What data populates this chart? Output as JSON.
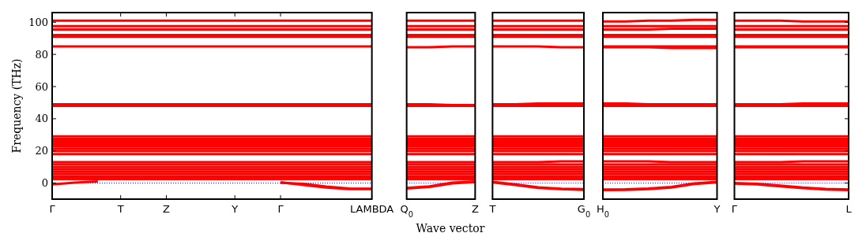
{
  "chart_data": [
    {
      "type": "line",
      "color": "#ff0000",
      "ylabel": "Frequency (THz)",
      "ylim": [
        -10,
        106
      ],
      "yticks": [
        0,
        20,
        40,
        60,
        80,
        100
      ],
      "categories": [
        "Γ",
        null,
        null,
        "T",
        null,
        "Z",
        null,
        null,
        "Y",
        null,
        "Γ",
        null,
        null,
        null,
        "LAMBDA"
      ],
      "ref_lines": [
        {
          "axis": "y",
          "value": 0,
          "color": "#0000ff",
          "line_style": "dotted"
        }
      ],
      "series": [
        {
          "values": [
            101,
            101,
            101,
            101,
            101,
            101,
            101,
            101,
            101,
            101,
            101,
            101,
            101,
            101,
            101
          ]
        },
        {
          "values": [
            97.5,
            97.5,
            97.5,
            97.5,
            97.5,
            97.5,
            97.5,
            97.5,
            97.5,
            97.5,
            97.5,
            97.5,
            97.5,
            97.5,
            97.5
          ]
        },
        {
          "values": [
            95.5,
            95.5,
            95.5,
            95.5,
            95.5,
            95.5,
            95.5,
            95.5,
            95.5,
            95.5,
            95.5,
            95.5,
            95.5,
            95.5,
            95.5
          ]
        },
        {
          "values": [
            92,
            92,
            92,
            92,
            92,
            92,
            92,
            92,
            92,
            92,
            92,
            92,
            92,
            92,
            92
          ]
        },
        {
          "values": [
            91,
            91,
            91,
            91,
            91,
            91,
            91,
            91,
            91,
            91,
            91,
            91,
            91,
            91,
            91
          ]
        },
        {
          "values": [
            85,
            85,
            85,
            85,
            85,
            85,
            85,
            85,
            85,
            85,
            85,
            85,
            85,
            85,
            85
          ]
        },
        {
          "values": [
            49,
            49,
            49,
            49,
            49,
            49,
            49,
            49,
            49,
            49,
            49,
            49,
            49,
            49,
            49
          ]
        },
        {
          "values": [
            48,
            48,
            48,
            48,
            48,
            48,
            48,
            48,
            48,
            48,
            48,
            48,
            48,
            48,
            48
          ]
        },
        {
          "values": [
            29,
            29,
            29,
            29,
            29,
            29,
            29,
            29,
            29,
            29,
            29,
            29,
            29,
            29,
            29
          ]
        },
        {
          "values": [
            27.5,
            27.5,
            27.5,
            27.5,
            27.5,
            27.5,
            27.5,
            27.5,
            27.5,
            27.5,
            27.5,
            27.5,
            27.5,
            27.5,
            27.5
          ]
        },
        {
          "values": [
            26,
            26,
            26,
            26,
            26,
            26,
            26,
            26,
            26,
            26,
            26,
            26,
            26,
            26,
            26
          ]
        },
        {
          "values": [
            24.5,
            24.5,
            24.5,
            24.5,
            24.5,
            24.5,
            24.5,
            24.5,
            24.5,
            24.5,
            24.5,
            24.5,
            24.5,
            24.5,
            24.5
          ]
        },
        {
          "values": [
            23,
            23,
            23,
            23,
            23,
            23,
            23,
            23,
            23,
            23,
            23,
            23,
            23,
            23,
            23
          ]
        },
        {
          "values": [
            21.5,
            21.5,
            21.5,
            21.5,
            21.5,
            21.5,
            21.5,
            21.5,
            21.5,
            21.5,
            21.5,
            21.5,
            21.5,
            21.5,
            21.5
          ]
        },
        {
          "values": [
            20,
            20,
            20,
            20,
            20,
            20,
            20,
            20,
            20,
            20,
            20,
            20,
            20,
            20,
            20
          ]
        },
        {
          "values": [
            18,
            18,
            18,
            18,
            18,
            18,
            18,
            18,
            18,
            18,
            18,
            18,
            18,
            18,
            18
          ]
        },
        {
          "values": [
            13,
            13,
            13,
            13,
            13,
            13,
            13,
            13,
            13,
            13,
            13,
            13,
            13,
            13,
            13
          ]
        },
        {
          "values": [
            11.5,
            11.5,
            11.5,
            11.5,
            11.5,
            11.5,
            11.5,
            11.5,
            11.5,
            11.5,
            11.5,
            11.5,
            11.5,
            11.5,
            11.5
          ]
        },
        {
          "values": [
            10,
            10,
            10,
            10,
            10,
            10,
            10,
            10,
            10,
            10,
            10,
            10,
            10,
            10,
            10
          ]
        },
        {
          "values": [
            8.5,
            8.5,
            8.5,
            8.5,
            8.5,
            8.5,
            8.5,
            8.5,
            8.5,
            8.5,
            8.5,
            8.5,
            8.5,
            8.5,
            8.5
          ]
        },
        {
          "values": [
            7,
            7,
            7,
            7,
            7,
            7,
            7,
            7,
            7,
            7,
            7,
            7,
            7,
            7,
            7
          ]
        },
        {
          "values": [
            5.5,
            5.5,
            5.5,
            5.5,
            5.5,
            5.5,
            5.5,
            5.5,
            5.5,
            5.5,
            5.5,
            5.5,
            5.5,
            5.5,
            5.5
          ]
        },
        {
          "values": [
            4,
            4,
            4,
            4,
            4,
            4,
            4,
            4,
            4,
            4,
            4,
            4,
            4,
            4,
            4
          ]
        },
        {
          "values": [
            2.5,
            2.5,
            2.5,
            2.5,
            2.5,
            2.5,
            2.5,
            2.5,
            2.5,
            2.5,
            2.5,
            2.5,
            2.5,
            2.5,
            2.5
          ]
        },
        {
          "values": [
            -0.8,
            0.3,
            1,
            null,
            null,
            null,
            null,
            null,
            null,
            null,
            null,
            null,
            null,
            null,
            null
          ]
        },
        {
          "values": [
            null,
            null,
            null,
            null,
            null,
            null,
            null,
            null,
            null,
            null,
            0.5,
            -1.2,
            -2.8,
            -3.8,
            -3.8
          ]
        },
        {
          "values": [
            null,
            null,
            null,
            null,
            null,
            null,
            null,
            null,
            null,
            null,
            0.2,
            -0.5,
            -2.2,
            -3.4,
            -3.5
          ]
        }
      ]
    },
    {
      "type": "line",
      "color": "#ff0000",
      "xlabel": "Wave vector",
      "tick_labels": "x",
      "ylim": [
        -10,
        106
      ],
      "yticks": [
        0,
        20,
        40,
        60,
        80,
        100
      ],
      "categories": [
        "Q$_{0}$",
        null,
        null,
        "Z"
      ],
      "ref_lines": [
        {
          "axis": "y",
          "value": 0,
          "color": "#0000ff",
          "line_style": "dotted"
        }
      ],
      "series": [
        {
          "values": [
            101,
            101,
            101,
            101
          ]
        },
        {
          "values": [
            97.5,
            97.5,
            97.5,
            97.5
          ]
        },
        {
          "values": [
            95.5,
            95.5,
            95.5,
            95.5
          ]
        },
        {
          "values": [
            92,
            92,
            92,
            92
          ]
        },
        {
          "values": [
            91,
            91,
            91,
            91
          ]
        },
        {
          "values": [
            84.5,
            84.5,
            85,
            85
          ]
        },
        {
          "values": [
            49,
            49,
            48.5,
            48.5
          ]
        },
        {
          "values": [
            48,
            48,
            48,
            48
          ]
        },
        {
          "values": [
            29,
            29,
            29,
            29
          ]
        },
        {
          "values": [
            27.5,
            27.5,
            27.5,
            27.5
          ]
        },
        {
          "values": [
            26,
            26,
            26,
            26
          ]
        },
        {
          "values": [
            24.5,
            24.5,
            24.5,
            24.5
          ]
        },
        {
          "values": [
            23,
            23,
            23,
            23
          ]
        },
        {
          "values": [
            21.5,
            21.5,
            21.5,
            21.5
          ]
        },
        {
          "values": [
            20,
            20,
            20,
            20
          ]
        },
        {
          "values": [
            18,
            18,
            18,
            18
          ]
        },
        {
          "values": [
            13,
            13,
            13,
            13
          ]
        },
        {
          "values": [
            11.5,
            11.5,
            11.5,
            11.5
          ]
        },
        {
          "values": [
            10,
            10,
            10,
            10
          ]
        },
        {
          "values": [
            8.5,
            8.5,
            8.5,
            8.5
          ]
        },
        {
          "values": [
            7,
            7,
            7,
            7
          ]
        },
        {
          "values": [
            5.5,
            5.5,
            5.5,
            5.5
          ]
        },
        {
          "values": [
            4,
            4,
            4,
            4
          ]
        },
        {
          "values": [
            2.5,
            2.5,
            2.5,
            2.5
          ]
        },
        {
          "values": [
            -3,
            -2,
            0.3,
            1
          ]
        },
        {
          "values": [
            -3.4,
            -2.4,
            -0.2,
            0.6
          ]
        }
      ]
    },
    {
      "type": "line",
      "color": "#ff0000",
      "tick_labels": "x",
      "ylim": [
        -10,
        106
      ],
      "yticks": [
        0,
        20,
        40,
        60,
        80,
        100
      ],
      "categories": [
        "T",
        null,
        null,
        null,
        "G$_{0}$"
      ],
      "ref_lines": [
        {
          "axis": "y",
          "value": 0,
          "color": "#0000ff",
          "line_style": "dotted"
        }
      ],
      "series": [
        {
          "values": [
            101,
            101,
            101,
            101,
            101
          ]
        },
        {
          "values": [
            97.5,
            97.5,
            97.5,
            97.5,
            97.5
          ]
        },
        {
          "values": [
            95.5,
            95.5,
            95.5,
            95.5,
            95.5
          ]
        },
        {
          "values": [
            92,
            92,
            92,
            92,
            92
          ]
        },
        {
          "values": [
            91,
            91,
            91,
            91,
            91
          ]
        },
        {
          "values": [
            85,
            85,
            85,
            84.5,
            84.5
          ]
        },
        {
          "values": [
            49,
            49,
            49.5,
            49.5,
            49.5
          ]
        },
        {
          "values": [
            48,
            48,
            48,
            48,
            48
          ]
        },
        {
          "values": [
            29,
            29,
            29,
            29,
            29
          ]
        },
        {
          "values": [
            27.5,
            27.5,
            27.5,
            27.5,
            27.5
          ]
        },
        {
          "values": [
            26,
            26,
            26,
            26,
            26
          ]
        },
        {
          "values": [
            24.5,
            24.5,
            24.5,
            24.5,
            24.5
          ]
        },
        {
          "values": [
            23,
            23,
            23,
            23,
            23
          ]
        },
        {
          "values": [
            21.5,
            21.5,
            21.5,
            21.5,
            21.5
          ]
        },
        {
          "values": [
            20,
            20,
            20,
            20,
            20
          ]
        },
        {
          "values": [
            18,
            18,
            18,
            18,
            18
          ]
        },
        {
          "values": [
            13,
            13,
            13,
            13.5,
            13.5
          ]
        },
        {
          "values": [
            11.5,
            11.5,
            11.5,
            11.5,
            11.5
          ]
        },
        {
          "values": [
            10,
            10,
            10,
            10,
            10
          ]
        },
        {
          "values": [
            8.5,
            8.5,
            8.5,
            8.5,
            8.5
          ]
        },
        {
          "values": [
            7,
            7,
            7,
            7,
            7
          ]
        },
        {
          "values": [
            5.5,
            5.5,
            5.5,
            5.5,
            5.5
          ]
        },
        {
          "values": [
            4,
            4,
            4,
            4,
            4
          ]
        },
        {
          "values": [
            2.5,
            2.5,
            2.5,
            2.5,
            2.5
          ]
        },
        {
          "values": [
            0.8,
            -0.8,
            -2.6,
            -3.5,
            -3.8
          ]
        },
        {
          "values": [
            0.4,
            -1.2,
            -3,
            -3.8,
            -4.2
          ]
        }
      ]
    },
    {
      "type": "line",
      "color": "#ff0000",
      "tick_labels": "x",
      "ylim": [
        -10,
        106
      ],
      "yticks": [
        0,
        20,
        40,
        60,
        80,
        100
      ],
      "categories": [
        "H$_{0}$",
        null,
        null,
        null,
        null,
        "Y"
      ],
      "ref_lines": [
        {
          "axis": "y",
          "value": 0,
          "color": "#0000ff",
          "line_style": "dotted"
        }
      ],
      "series": [
        {
          "values": [
            100.5,
            100.5,
            101,
            101,
            101.5,
            101.5
          ]
        },
        {
          "values": [
            97.5,
            97.5,
            97.5,
            97.5,
            97.5,
            97.5
          ]
        },
        {
          "values": [
            95.5,
            95.5,
            95.5,
            96,
            96,
            96
          ]
        },
        {
          "values": [
            92,
            92,
            92,
            92,
            92,
            92
          ]
        },
        {
          "values": [
            91,
            91,
            91,
            91,
            91,
            91
          ]
        },
        {
          "values": [
            85,
            85,
            85,
            85,
            85,
            85
          ]
        },
        {
          "values": [
            84.5,
            84.5,
            84.5,
            84,
            84,
            84
          ]
        },
        {
          "values": [
            49.5,
            49.5,
            49,
            49,
            49,
            49
          ]
        },
        {
          "values": [
            48,
            48,
            48,
            48,
            48,
            48
          ]
        },
        {
          "values": [
            29,
            29,
            29,
            29,
            29,
            29
          ]
        },
        {
          "values": [
            27.5,
            27.5,
            27.5,
            27.5,
            27.5,
            27.5
          ]
        },
        {
          "values": [
            26,
            26,
            26,
            26,
            26,
            26
          ]
        },
        {
          "values": [
            24.5,
            24.5,
            24.5,
            24.5,
            24.5,
            24.5
          ]
        },
        {
          "values": [
            23,
            23,
            23,
            23,
            23,
            23
          ]
        },
        {
          "values": [
            21.5,
            21.5,
            21.5,
            21.5,
            21.5,
            21.5
          ]
        },
        {
          "values": [
            20,
            20,
            20,
            20,
            20,
            20
          ]
        },
        {
          "values": [
            18,
            18,
            18,
            18,
            18,
            18
          ]
        },
        {
          "values": [
            13.5,
            13.5,
            13.5,
            13,
            13,
            13
          ]
        },
        {
          "values": [
            11.5,
            11.5,
            11.5,
            11.5,
            11.5,
            11.5
          ]
        },
        {
          "values": [
            10,
            10,
            10,
            10,
            10,
            10
          ]
        },
        {
          "values": [
            8.5,
            8.5,
            8.5,
            8.5,
            8.5,
            8.5
          ]
        },
        {
          "values": [
            7,
            7,
            7,
            7,
            7,
            7
          ]
        },
        {
          "values": [
            5.5,
            5.5,
            5.5,
            5.5,
            5.5,
            5.5
          ]
        },
        {
          "values": [
            4,
            4,
            4,
            4,
            4,
            4
          ]
        },
        {
          "values": [
            2.5,
            2.5,
            2.5,
            2.5,
            2.5,
            2.5
          ]
        },
        {
          "values": [
            -4,
            -3.9,
            -3.4,
            -2.4,
            -0.2,
            0.8
          ]
        },
        {
          "values": [
            -4.4,
            -4.2,
            -3.8,
            -2.8,
            -0.6,
            0.4
          ]
        }
      ]
    },
    {
      "type": "line",
      "color": "#ff0000",
      "tick_labels": "x",
      "ylim": [
        -10,
        106
      ],
      "yticks": [
        0,
        20,
        40,
        60,
        80,
        100
      ],
      "categories": [
        "Γ",
        null,
        null,
        null,
        null,
        "L"
      ],
      "ref_lines": [
        {
          "axis": "y",
          "value": 0,
          "color": "#0000ff",
          "line_style": "dotted"
        }
      ],
      "series": [
        {
          "values": [
            101,
            101,
            101,
            100.5,
            100.5,
            100.5
          ]
        },
        {
          "values": [
            97.5,
            97.5,
            97.5,
            97.5,
            97.5,
            97.5
          ]
        },
        {
          "values": [
            95.5,
            95.5,
            95.5,
            95.5,
            95.5,
            95.5
          ]
        },
        {
          "values": [
            92,
            92,
            92,
            92,
            92,
            92
          ]
        },
        {
          "values": [
            91,
            91,
            91,
            91,
            91,
            91
          ]
        },
        {
          "values": [
            85,
            85,
            85,
            85,
            85,
            85
          ]
        },
        {
          "values": [
            84.5,
            84.5,
            84.5,
            84.5,
            84.5,
            84.5
          ]
        },
        {
          "values": [
            49,
            49,
            49,
            49.5,
            49.5,
            49.5
          ]
        },
        {
          "values": [
            48,
            48,
            48,
            48,
            48,
            48
          ]
        },
        {
          "values": [
            29,
            29,
            29,
            29,
            29,
            29
          ]
        },
        {
          "values": [
            27.5,
            27.5,
            27.5,
            27.5,
            27.5,
            27.5
          ]
        },
        {
          "values": [
            26,
            26,
            26,
            26,
            26,
            26
          ]
        },
        {
          "values": [
            24.5,
            24.5,
            24.5,
            24.5,
            24.5,
            24.5
          ]
        },
        {
          "values": [
            23,
            23,
            23,
            23,
            23,
            23
          ]
        },
        {
          "values": [
            21.5,
            21.5,
            21.5,
            21.5,
            21.5,
            21.5
          ]
        },
        {
          "values": [
            20,
            20,
            20,
            20,
            20,
            20
          ]
        },
        {
          "values": [
            18,
            18,
            18,
            18,
            18,
            18
          ]
        },
        {
          "values": [
            13,
            13,
            13,
            13.5,
            13.5,
            13.5
          ]
        },
        {
          "values": [
            11.5,
            11.5,
            11.5,
            11.5,
            11.5,
            11.5
          ]
        },
        {
          "values": [
            10,
            10,
            10,
            10,
            10,
            10
          ]
        },
        {
          "values": [
            8.5,
            8.5,
            8.5,
            8.5,
            8.5,
            8.5
          ]
        },
        {
          "values": [
            7,
            7,
            7,
            7,
            7,
            7
          ]
        },
        {
          "values": [
            5.5,
            5.5,
            5.5,
            5.5,
            5.5,
            5.5
          ]
        },
        {
          "values": [
            4,
            4,
            4,
            4,
            4,
            4
          ]
        },
        {
          "values": [
            2.5,
            2.5,
            2.5,
            2.5,
            2.5,
            2.5
          ]
        },
        {
          "values": [
            0,
            -0.4,
            -1.6,
            -2.8,
            -3.6,
            -4
          ]
        },
        {
          "values": [
            -0.3,
            -0.8,
            -2,
            -3.2,
            -4,
            -4.4
          ]
        }
      ]
    }
  ]
}
